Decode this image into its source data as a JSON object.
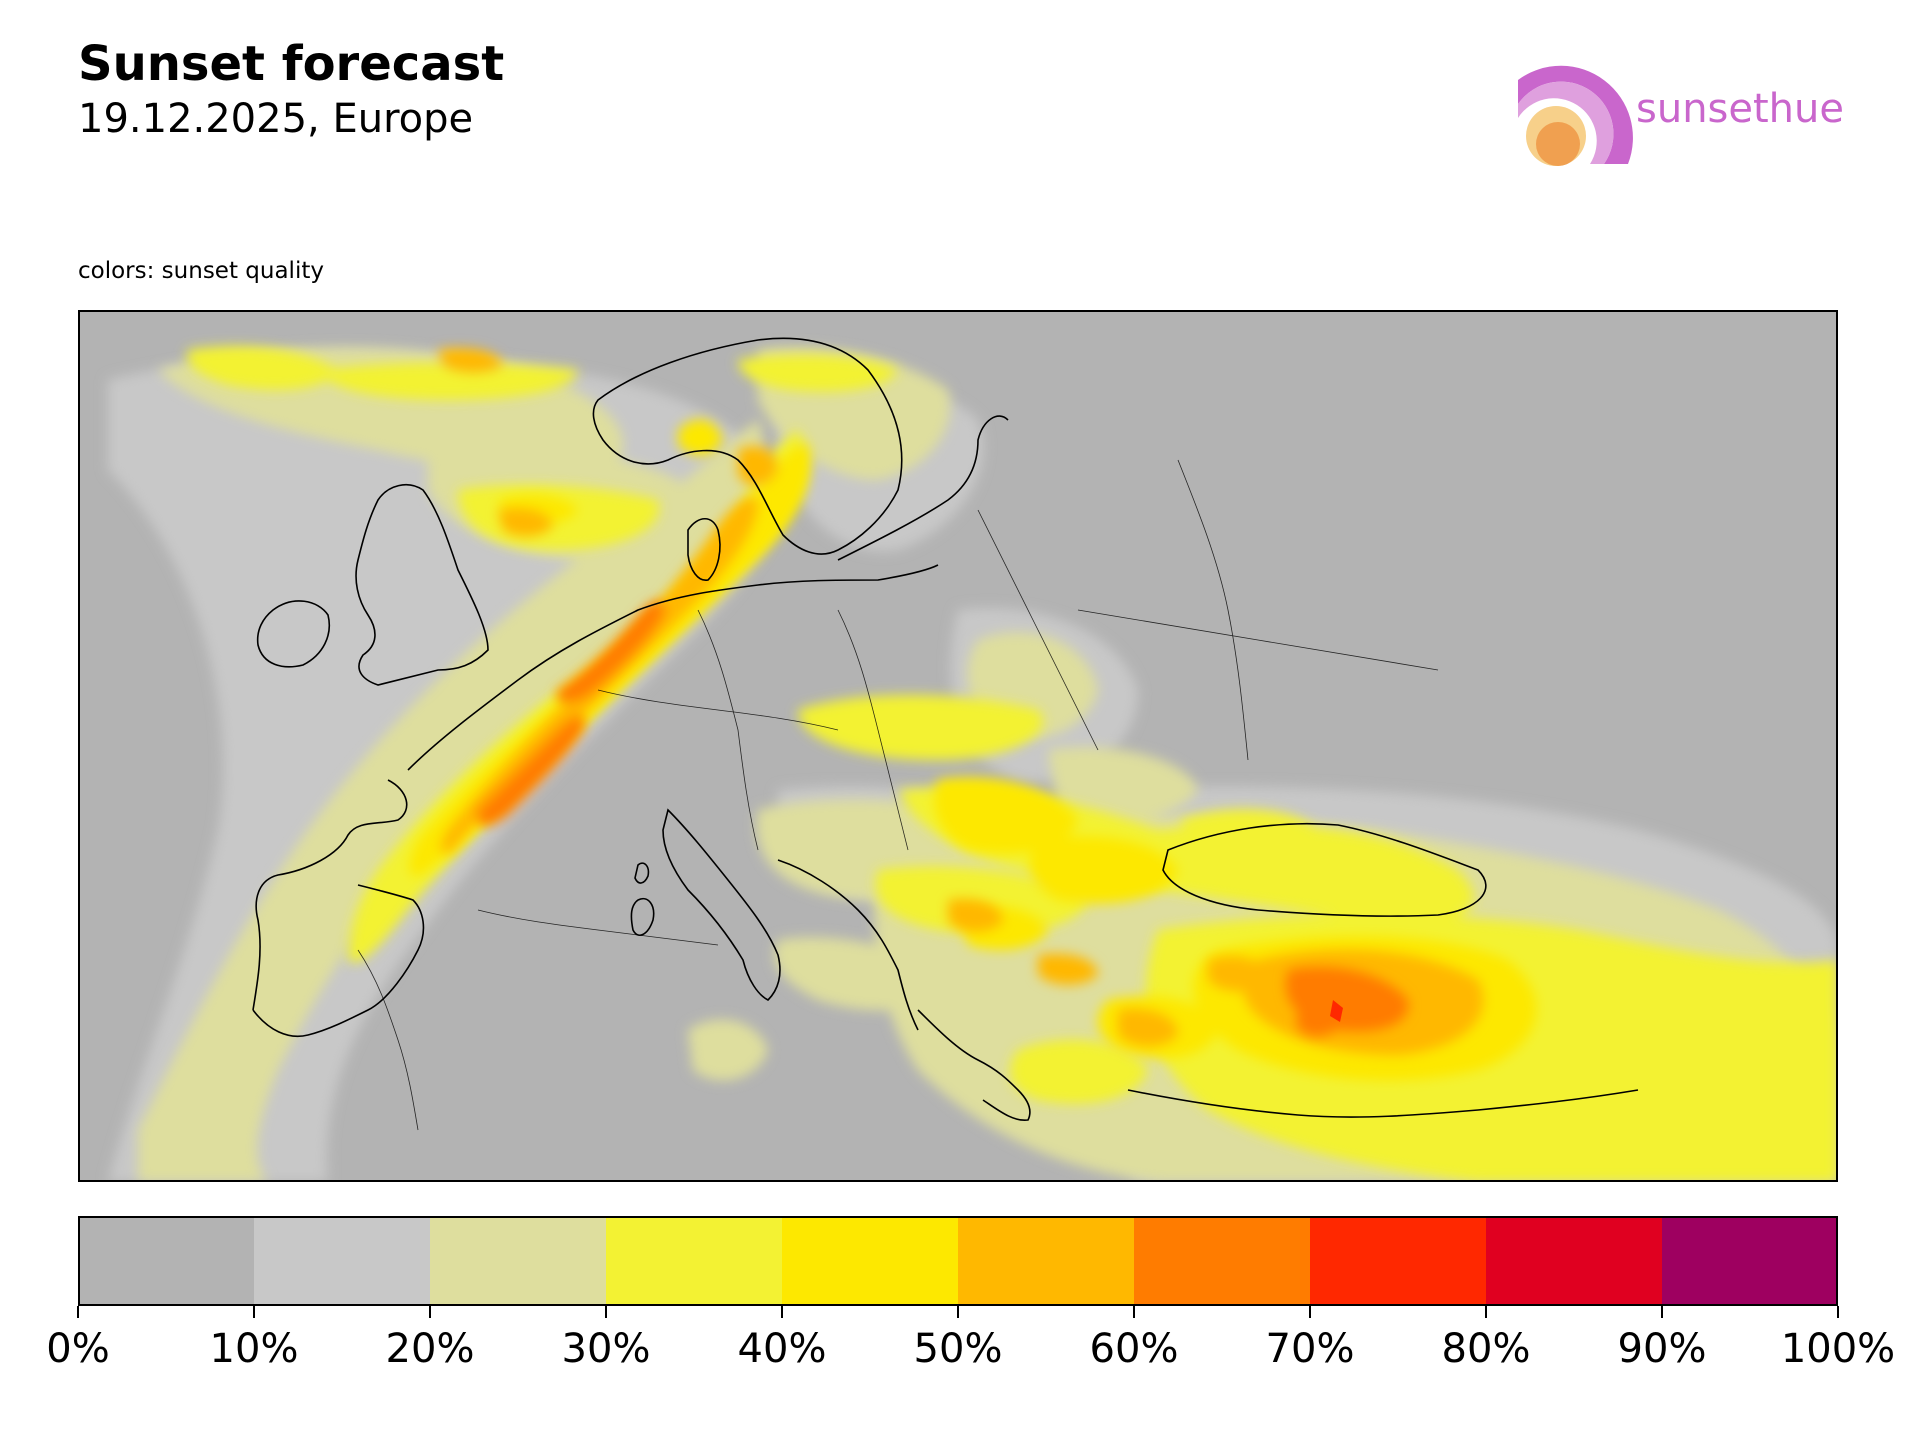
{
  "header": {
    "title": "Sunset forecast",
    "subtitle": "19.12.2025, Europe",
    "caption": "colors: sunset quality"
  },
  "logo": {
    "text": "sunsethue",
    "icon": "sunsethue-logo-icon",
    "colors": {
      "arc_outer": "#c966cc",
      "arc_inner": "#dfa0de",
      "sun_outer": "#f7d08a",
      "sun_inner": "#f0a050"
    }
  },
  "legend": {
    "bins": [
      {
        "from": 0,
        "to": 10,
        "color": "#b3b3b3"
      },
      {
        "from": 10,
        "to": 20,
        "color": "#c8c8c8"
      },
      {
        "from": 20,
        "to": 30,
        "color": "#dede9e"
      },
      {
        "from": 30,
        "to": 40,
        "color": "#f3f233"
      },
      {
        "from": 40,
        "to": 50,
        "color": "#fde800"
      },
      {
        "from": 50,
        "to": 60,
        "color": "#ffb800"
      },
      {
        "from": 60,
        "to": 70,
        "color": "#ff7c00"
      },
      {
        "from": 70,
        "to": 80,
        "color": "#ff2800"
      },
      {
        "from": 80,
        "to": 90,
        "color": "#e00020"
      },
      {
        "from": 90,
        "to": 100,
        "color": "#9e0060"
      }
    ],
    "tick_labels": [
      "0%",
      "10%",
      "20%",
      "30%",
      "40%",
      "50%",
      "60%",
      "70%",
      "80%",
      "90%",
      "100%"
    ]
  },
  "map": {
    "background_color": "#b3b3b3",
    "border_color": "#000000",
    "region": "Europe"
  }
}
